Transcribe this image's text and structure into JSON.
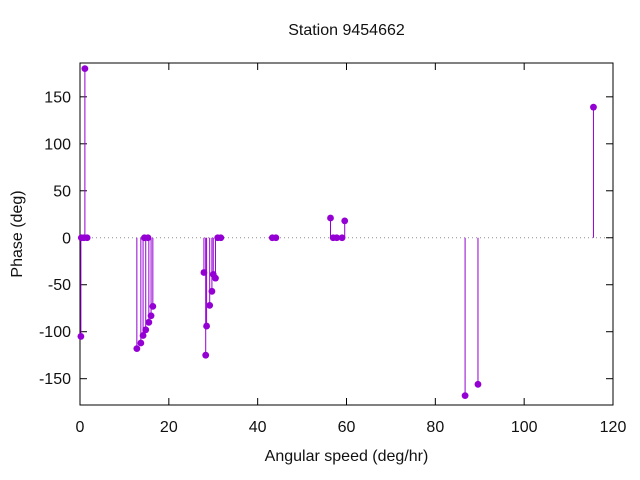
{
  "window": {
    "background": "#ffffff",
    "text_color": "#111111"
  },
  "chart_data": {
    "type": "scatter",
    "style": "impulses-with-points",
    "title": "Station 9454662",
    "xlabel": "Angular speed (deg/hr)",
    "ylabel": "Phase (deg)",
    "xlim": [
      0,
      120
    ],
    "ylim": [
      -178,
      186
    ],
    "xticks": [
      0,
      20,
      40,
      60,
      80,
      100,
      120
    ],
    "yticks": [
      -150,
      -100,
      -50,
      0,
      50,
      100,
      150
    ],
    "grid": false,
    "zero_line": true,
    "legend": "none",
    "series_color": "#9400d3",
    "border_color": "#000000",
    "zero_line_color": "#909090",
    "marker": "filled-circle",
    "points": [
      [
        0.2,
        -105
      ],
      [
        0.3,
        0
      ],
      [
        0.9,
        0
      ],
      [
        1.1,
        180
      ],
      [
        1.6,
        0
      ],
      [
        12.8,
        -118
      ],
      [
        13.7,
        -112
      ],
      [
        14.2,
        -104
      ],
      [
        14.5,
        0
      ],
      [
        14.8,
        -98
      ],
      [
        15.3,
        0
      ],
      [
        15.5,
        -90
      ],
      [
        16.0,
        -83
      ],
      [
        16.4,
        -73
      ],
      [
        27.9,
        -37
      ],
      [
        28.3,
        -125
      ],
      [
        28.5,
        -94
      ],
      [
        29.2,
        -72
      ],
      [
        29.7,
        -57
      ],
      [
        30.0,
        -39
      ],
      [
        30.5,
        -43
      ],
      [
        31.0,
        0
      ],
      [
        31.7,
        0
      ],
      [
        43.3,
        0
      ],
      [
        44.1,
        0
      ],
      [
        56.4,
        21
      ],
      [
        57.0,
        0
      ],
      [
        57.8,
        0
      ],
      [
        59.0,
        0
      ],
      [
        59.6,
        18
      ],
      [
        86.7,
        -168
      ],
      [
        89.6,
        -156
      ],
      [
        115.6,
        139
      ]
    ]
  }
}
